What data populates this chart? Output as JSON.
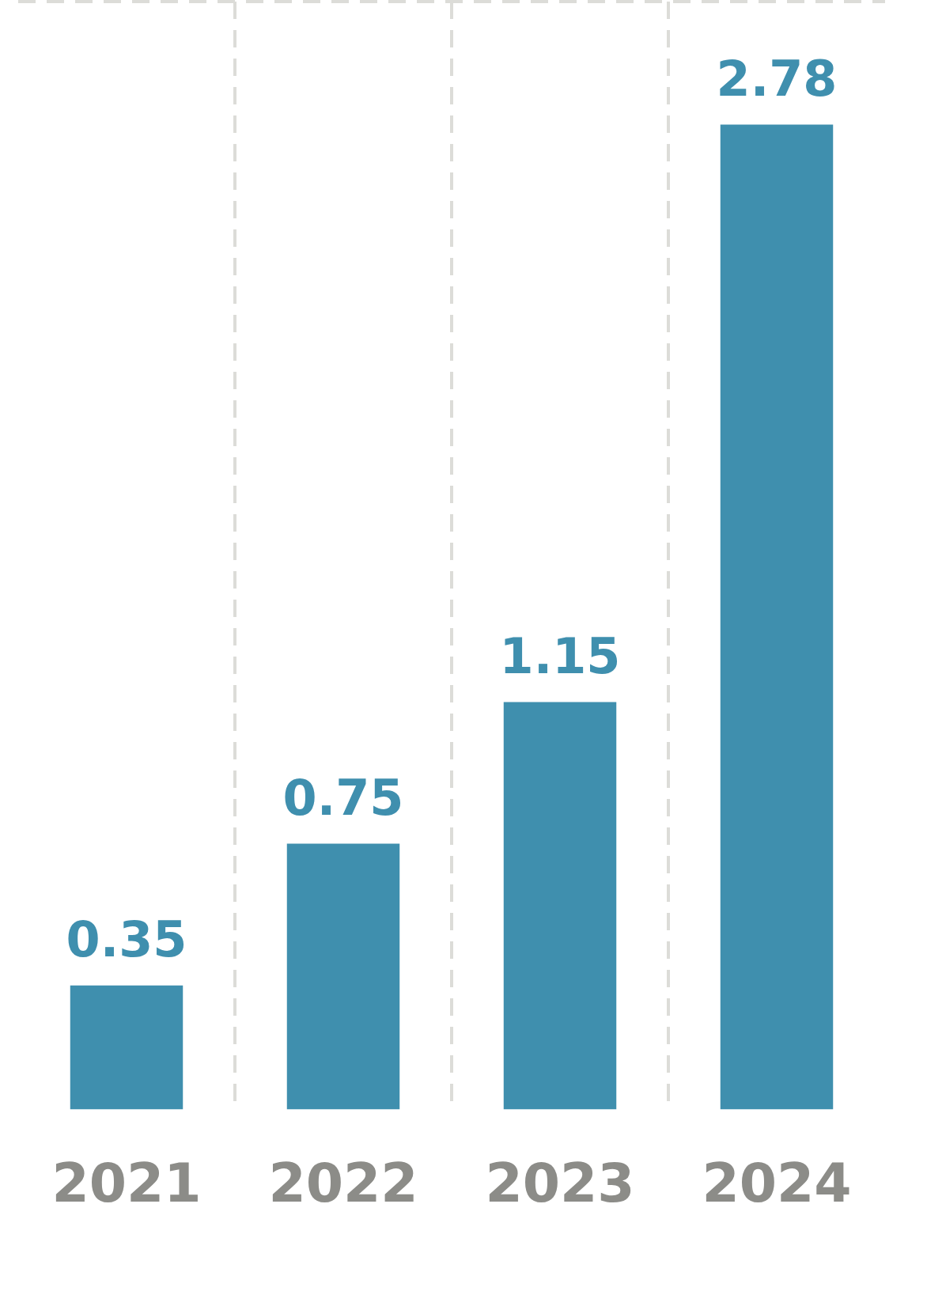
{
  "chart_data": {
    "type": "bar",
    "categories": [
      "2021",
      "2022",
      "2023",
      "2024"
    ],
    "values": [
      0.35,
      0.75,
      1.15,
      2.78
    ],
    "color": "#3f8fae",
    "data_labels": true,
    "grid": "x",
    "legend": false
  }
}
